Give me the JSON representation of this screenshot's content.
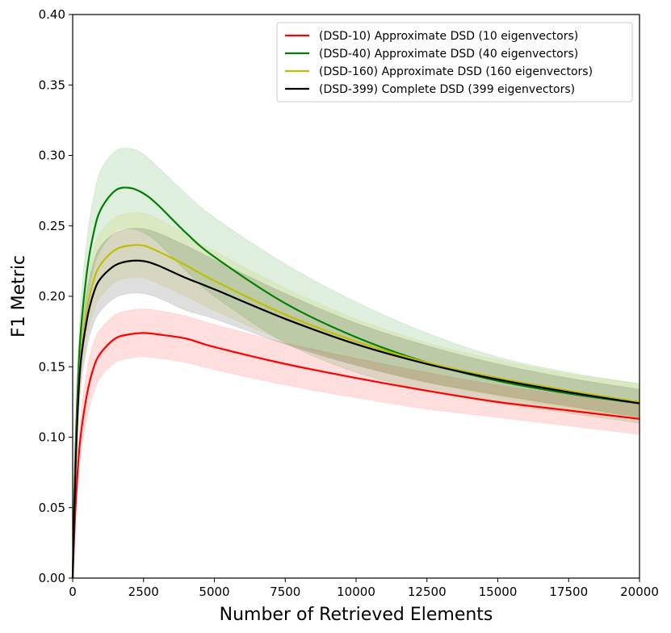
{
  "chart_data": {
    "type": "line",
    "title": "",
    "xlabel": "Number of Retrieved Elements",
    "ylabel": "F1 Metric",
    "xlim": [
      0,
      20000
    ],
    "ylim": [
      0,
      0.4
    ],
    "xticks": [
      0,
      2500,
      5000,
      7500,
      10000,
      12500,
      15000,
      17500,
      20000
    ],
    "yticks": [
      0.0,
      0.05,
      0.1,
      0.15,
      0.2,
      0.25,
      0.3,
      0.35,
      0.4
    ],
    "xtick_labels": [
      "0",
      "2500",
      "5000",
      "7500",
      "10000",
      "12500",
      "15000",
      "17500",
      "20000"
    ],
    "ytick_labels": [
      "0.00",
      "0.05",
      "0.10",
      "0.15",
      "0.20",
      "0.25",
      "0.30",
      "0.35",
      "0.40"
    ],
    "grid": false,
    "legend_position": "top-right",
    "x": [
      0,
      100,
      250,
      500,
      750,
      1000,
      1500,
      2000,
      2500,
      3000,
      4000,
      5000,
      7500,
      10000,
      12500,
      15000,
      17500,
      20000
    ],
    "series": [
      {
        "name": "(DSD-10) Approximate DSD (10 eigenvectors)",
        "color": "#ff0000",
        "values": [
          0.0,
          0.05,
          0.095,
          0.13,
          0.15,
          0.16,
          0.17,
          0.173,
          0.174,
          0.173,
          0.17,
          0.164,
          0.152,
          0.142,
          0.133,
          0.125,
          0.119,
          0.113
        ],
        "upper": [
          0.0,
          0.06,
          0.108,
          0.147,
          0.168,
          0.177,
          0.187,
          0.19,
          0.191,
          0.19,
          0.186,
          0.18,
          0.167,
          0.156,
          0.146,
          0.137,
          0.13,
          0.124
        ],
        "lower": [
          0.0,
          0.04,
          0.082,
          0.113,
          0.132,
          0.143,
          0.153,
          0.156,
          0.157,
          0.156,
          0.153,
          0.148,
          0.137,
          0.128,
          0.12,
          0.114,
          0.108,
          0.102
        ]
      },
      {
        "name": "(DSD-40) Approximate DSD (40 eigenvectors)",
        "color": "#008000",
        "values": [
          0.0,
          0.09,
          0.165,
          0.217,
          0.246,
          0.262,
          0.275,
          0.277,
          0.273,
          0.265,
          0.245,
          0.228,
          0.195,
          0.171,
          0.153,
          0.14,
          0.131,
          0.124
        ],
        "upper": [
          0.0,
          0.1,
          0.185,
          0.24,
          0.272,
          0.29,
          0.303,
          0.305,
          0.301,
          0.292,
          0.273,
          0.256,
          0.223,
          0.196,
          0.174,
          0.157,
          0.146,
          0.138
        ],
        "lower": [
          0.0,
          0.08,
          0.145,
          0.194,
          0.22,
          0.233,
          0.246,
          0.248,
          0.245,
          0.238,
          0.218,
          0.2,
          0.167,
          0.146,
          0.133,
          0.124,
          0.117,
          0.11
        ]
      },
      {
        "name": "(DSD-160) Approximate DSD (160 eigenvectors)",
        "color": "#bfbf00",
        "values": [
          0.0,
          0.08,
          0.148,
          0.19,
          0.212,
          0.223,
          0.233,
          0.236,
          0.236,
          0.232,
          0.222,
          0.211,
          0.187,
          0.168,
          0.153,
          0.142,
          0.133,
          0.125
        ],
        "upper": [
          0.0,
          0.09,
          0.165,
          0.21,
          0.234,
          0.246,
          0.256,
          0.259,
          0.259,
          0.255,
          0.244,
          0.232,
          0.206,
          0.184,
          0.167,
          0.155,
          0.145,
          0.138
        ],
        "lower": [
          0.0,
          0.07,
          0.131,
          0.17,
          0.19,
          0.2,
          0.21,
          0.213,
          0.213,
          0.209,
          0.2,
          0.19,
          0.168,
          0.152,
          0.139,
          0.129,
          0.121,
          0.112
        ]
      },
      {
        "name": "(DSD-399) Complete DSD (399 eigenvectors)",
        "color": "#000000",
        "values": [
          0.0,
          0.078,
          0.145,
          0.183,
          0.203,
          0.213,
          0.222,
          0.225,
          0.225,
          0.222,
          0.213,
          0.205,
          0.184,
          0.166,
          0.152,
          0.141,
          0.132,
          0.124
        ],
        "upper": [
          0.0,
          0.09,
          0.162,
          0.203,
          0.225,
          0.236,
          0.245,
          0.248,
          0.248,
          0.245,
          0.236,
          0.226,
          0.202,
          0.181,
          0.165,
          0.152,
          0.142,
          0.134
        ],
        "lower": [
          0.0,
          0.066,
          0.128,
          0.163,
          0.181,
          0.19,
          0.199,
          0.202,
          0.202,
          0.199,
          0.19,
          0.184,
          0.166,
          0.151,
          0.139,
          0.13,
          0.122,
          0.114
        ]
      }
    ]
  }
}
